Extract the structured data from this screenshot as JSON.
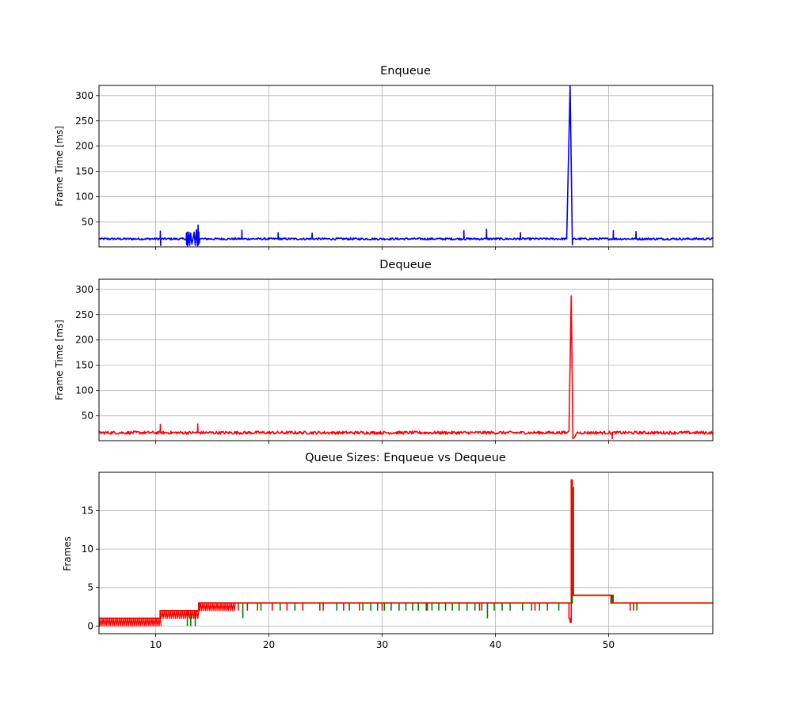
{
  "chart_data": [
    {
      "type": "line",
      "title": "Enqueue",
      "ylabel": "Frame Time [ms]",
      "xlabel": "",
      "xlim": [
        5,
        59.2
      ],
      "ylim": [
        1,
        320
      ],
      "xticks": [
        10,
        20,
        30,
        40,
        50
      ],
      "xtick_labels_visible": false,
      "yticks": [
        50,
        100,
        150,
        200,
        250,
        300
      ],
      "ytick_labels": [
        "50",
        "100",
        "150",
        "200",
        "250",
        "300"
      ],
      "grid": true,
      "series": [
        {
          "color": "#0000ff",
          "baseline": 16.7,
          "noise": 2,
          "x": [
            5,
            10.4,
            10.42,
            10.44,
            10.46,
            12.7,
            12.72,
            12.74,
            12.8,
            12.82,
            12.9,
            12.95,
            13.0,
            13.1,
            13.2,
            13.3,
            13.4,
            13.5,
            13.6,
            13.7,
            13.75,
            13.78,
            13.82,
            13.85,
            13.9,
            13.95,
            17.6,
            17.62,
            17.64,
            20.8,
            20.82,
            20.84,
            23.8,
            23.82,
            23.84,
            37.2,
            37.22,
            37.24,
            39.2,
            39.22,
            39.24,
            42.2,
            42.22,
            42.24,
            46.3,
            46.6,
            46.8,
            46.82,
            46.9,
            50.4,
            50.42,
            50.44,
            52.4,
            52.42,
            52.44,
            59.2
          ],
          "y": [
            16.7,
            16.7,
            32,
            4,
            16.7,
            16.7,
            28,
            5,
            30,
            3,
            16.7,
            30,
            4,
            28,
            6,
            16.7,
            30,
            4,
            35,
            3,
            44,
            5,
            30,
            8,
            16.7,
            16.7,
            16.7,
            34,
            16.7,
            16.7,
            29,
            16.7,
            16.7,
            28,
            16.7,
            16.7,
            33,
            16.7,
            16.7,
            36,
            16.7,
            16.7,
            29,
            16.7,
            16.7,
            320,
            5,
            16.7,
            16.7,
            16.7,
            33,
            16.7,
            16.7,
            31,
            16.7,
            16.7
          ]
        }
      ]
    },
    {
      "type": "line",
      "title": "Dequeue",
      "ylabel": "Frame Time [ms]",
      "xlabel": "",
      "xlim": [
        5,
        59.2
      ],
      "ylim": [
        1,
        320
      ],
      "xticks": [
        10,
        20,
        30,
        40,
        50
      ],
      "xtick_labels_visible": false,
      "yticks": [
        50,
        100,
        150,
        200,
        250,
        300
      ],
      "ytick_labels": [
        "50",
        "100",
        "150",
        "200",
        "250",
        "300"
      ],
      "grid": true,
      "series": [
        {
          "color": "#ff0000",
          "baseline": 16.7,
          "noise": 3,
          "x": [
            5,
            10.4,
            10.42,
            10.44,
            13.7,
            13.72,
            13.74,
            46.3,
            46.5,
            46.7,
            46.85,
            47.0,
            47.2,
            50.3,
            50.32,
            50.34,
            59.2
          ],
          "y": [
            16.7,
            16.7,
            33,
            16.7,
            16.7,
            34,
            16.7,
            16.7,
            20,
            287,
            5,
            8,
            16.7,
            16.7,
            5,
            16.7,
            16.7
          ]
        }
      ]
    },
    {
      "type": "line",
      "title": "Queue Sizes: Enqueue vs Dequeue",
      "ylabel": "Frames",
      "xlabel": "",
      "xlim": [
        5,
        59.2
      ],
      "ylim": [
        -1,
        20
      ],
      "xticks": [
        10,
        20,
        30,
        40,
        50
      ],
      "xtick_labels": [
        "10",
        "20",
        "30",
        "40",
        "50"
      ],
      "yticks": [
        0,
        5,
        10,
        15
      ],
      "ytick_labels": [
        "0",
        "5",
        "10",
        "15"
      ],
      "grid": true,
      "series": [
        {
          "color": "#008000",
          "step": true,
          "x": [
            5,
            10.4,
            13.9,
            46.7,
            46.8,
            46.9,
            50.2,
            50.4,
            59.2
          ],
          "y": [
            1,
            2,
            3,
            3,
            18,
            4,
            4,
            3,
            3
          ],
          "dips": [
            12.8,
            13.1,
            13.5,
            17.7,
            19.3,
            21.0,
            22.3,
            24.5,
            26.0,
            27.1,
            28.3,
            29.0,
            29.6,
            30.2,
            30.8,
            31.5,
            32.1,
            32.7,
            33.2,
            33.9,
            34.4,
            35.0,
            35.6,
            36.2,
            36.8,
            37.5,
            38.2,
            38.8,
            39.3,
            39.9,
            40.6,
            41.3,
            42.4,
            43.2,
            43.9,
            44.6,
            45.6,
            50.3,
            52.5
          ],
          "dip_depth": 1,
          "dip_floor_points": [
            [
              12.8,
              0
            ],
            [
              13.1,
              0
            ],
            [
              13.5,
              0
            ],
            [
              17.7,
              1
            ],
            [
              39.3,
              1
            ]
          ]
        },
        {
          "color": "#ff0000",
          "step": true,
          "x": [
            5,
            10.4,
            13.8,
            46.3,
            46.5,
            46.6,
            46.7,
            46.8,
            50.2,
            59.2
          ],
          "y": [
            1,
            2,
            3,
            3,
            1,
            0.5,
            19,
            4,
            3,
            3
          ],
          "dense_band_ranges": [
            [
              5,
              10.4,
              0,
              1
            ],
            [
              10.4,
              13.8,
              1,
              2
            ],
            [
              13.8,
              17.0,
              2,
              3
            ]
          ],
          "dips": [
            17.3,
            18.1,
            19.0,
            20.3,
            21.6,
            23.0,
            24.8,
            26.6,
            28.0,
            30.0,
            34.0,
            38.6,
            43.5,
            51.9,
            52.2
          ],
          "dip_depth": 1
        }
      ]
    }
  ]
}
